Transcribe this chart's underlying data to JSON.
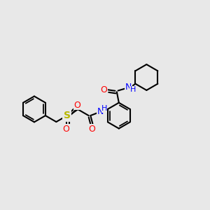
{
  "bg_color": "#e8e8e8",
  "bond_color": "#000000",
  "bond_width": 1.5,
  "atom_colors": {
    "O": "#ff0000",
    "N": "#0000ff",
    "S": "#b8b800",
    "C": "#000000",
    "H": "#0000ff"
  },
  "fig_width": 3.0,
  "fig_height": 3.0,
  "dpi": 100
}
